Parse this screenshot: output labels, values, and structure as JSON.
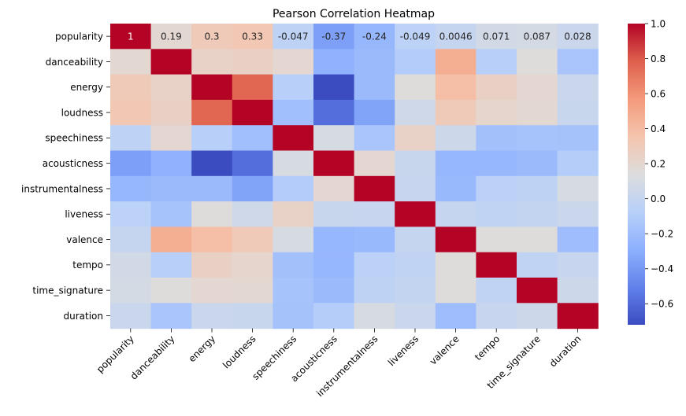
{
  "chart_data": {
    "type": "heatmap",
    "title": "Pearson Correlation Heatmap",
    "xlabel": "",
    "ylabel": "",
    "colormap": "coolwarm",
    "vmin": -0.72,
    "vmax": 1.0,
    "colorbar_ticks": [
      "1.0",
      "0.8",
      "0.6",
      "0.4",
      "0.2",
      "0.0",
      "−0.2",
      "−0.4",
      "−0.6"
    ],
    "colorbar_tick_values": [
      1.0,
      0.8,
      0.6,
      0.4,
      0.2,
      0.0,
      -0.2,
      -0.4,
      -0.6
    ],
    "x_categories": [
      "popularity",
      "danceability",
      "energy",
      "loudness",
      "speechiness",
      "acousticness",
      "instrumentalness",
      "liveness",
      "valence",
      "tempo",
      "time_signature",
      "duration"
    ],
    "y_categories": [
      "popularity",
      "danceability",
      "energy",
      "loudness",
      "speechiness",
      "acousticness",
      "instrumentalness",
      "liveness",
      "valence",
      "tempo",
      "time_signature",
      "duration"
    ],
    "annotated_rows": [
      0
    ],
    "row_labels": [
      [
        "1",
        "0.19",
        "0.3",
        "0.33",
        "-0.047",
        "-0.37",
        "-0.24",
        "-0.049",
        "0.0046",
        "0.071",
        "0.087",
        "0.028"
      ]
    ],
    "values": [
      [
        1.0,
        0.19,
        0.3,
        0.33,
        -0.047,
        -0.37,
        -0.24,
        -0.049,
        0.0046,
        0.071,
        0.087,
        0.028
      ],
      [
        0.19,
        1.0,
        0.24,
        0.25,
        0.2,
        -0.28,
        -0.22,
        -0.1,
        0.47,
        -0.08,
        0.15,
        -0.15
      ],
      [
        0.3,
        0.24,
        1.0,
        0.76,
        -0.08,
        -0.72,
        -0.22,
        0.15,
        0.38,
        0.25,
        0.2,
        0.03
      ],
      [
        0.33,
        0.25,
        0.76,
        1.0,
        -0.19,
        -0.58,
        -0.35,
        0.05,
        0.3,
        0.21,
        0.19,
        0.02
      ],
      [
        -0.047,
        0.2,
        -0.08,
        -0.19,
        1.0,
        0.1,
        -0.15,
        0.24,
        0.04,
        -0.18,
        -0.16,
        -0.17
      ],
      [
        -0.37,
        -0.28,
        -0.72,
        -0.58,
        0.1,
        1.0,
        0.2,
        0.02,
        -0.24,
        -0.24,
        -0.22,
        -0.09
      ],
      [
        -0.24,
        -0.22,
        -0.22,
        -0.35,
        -0.1,
        0.2,
        1.0,
        0.01,
        -0.23,
        -0.06,
        -0.04,
        0.1
      ],
      [
        -0.049,
        -0.16,
        0.15,
        0.05,
        0.24,
        0.02,
        0.01,
        1.0,
        0.0,
        -0.02,
        -0.01,
        0.03
      ],
      [
        0.0046,
        0.47,
        0.38,
        0.3,
        0.1,
        -0.24,
        -0.23,
        0.0,
        1.0,
        0.15,
        0.15,
        -0.2
      ],
      [
        0.071,
        -0.08,
        0.25,
        0.21,
        -0.18,
        -0.24,
        -0.06,
        -0.02,
        0.15,
        1.0,
        -0.02,
        0.01
      ],
      [
        0.087,
        0.15,
        0.2,
        0.19,
        -0.16,
        -0.22,
        -0.04,
        -0.01,
        0.15,
        -0.02,
        1.0,
        0.04
      ],
      [
        0.028,
        -0.15,
        0.03,
        0.02,
        -0.17,
        -0.09,
        0.1,
        0.03,
        -0.2,
        0.01,
        0.04,
        1.0
      ]
    ]
  }
}
